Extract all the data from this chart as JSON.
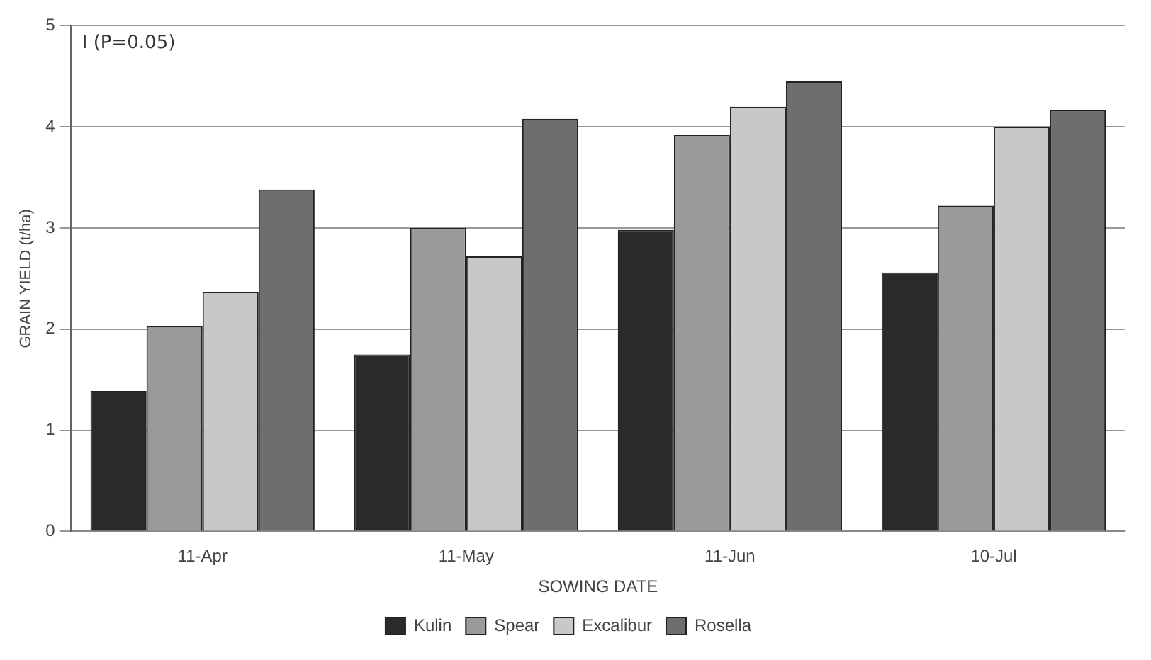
{
  "chart_data": {
    "type": "bar",
    "xlabel": "SOWING DATE",
    "ylabel": "GRAIN YIELD (t/ha)",
    "categories": [
      "11-Apr",
      "11-May",
      "11-Jun",
      "10-Jul"
    ],
    "series": [
      {
        "name": "Kulin",
        "color": "#2a2a2a",
        "values": [
          1.39,
          1.75,
          2.98,
          2.56
        ]
      },
      {
        "name": "Spear",
        "color": "#9a9a9a",
        "values": [
          2.03,
          3.0,
          3.92,
          3.22
        ]
      },
      {
        "name": "Excalibur",
        "color": "#c8c8c8",
        "values": [
          2.37,
          2.72,
          4.2,
          4.0
        ]
      },
      {
        "name": "Rosella",
        "color": "#6e6e6e",
        "values": [
          3.38,
          4.08,
          4.45,
          4.17
        ]
      }
    ],
    "ylim": [
      0,
      5
    ],
    "yticks": [
      0,
      1,
      2,
      3,
      4,
      5
    ],
    "grid": "y",
    "legend": "bottom",
    "annotations": [
      "I (P=0.05)"
    ]
  }
}
